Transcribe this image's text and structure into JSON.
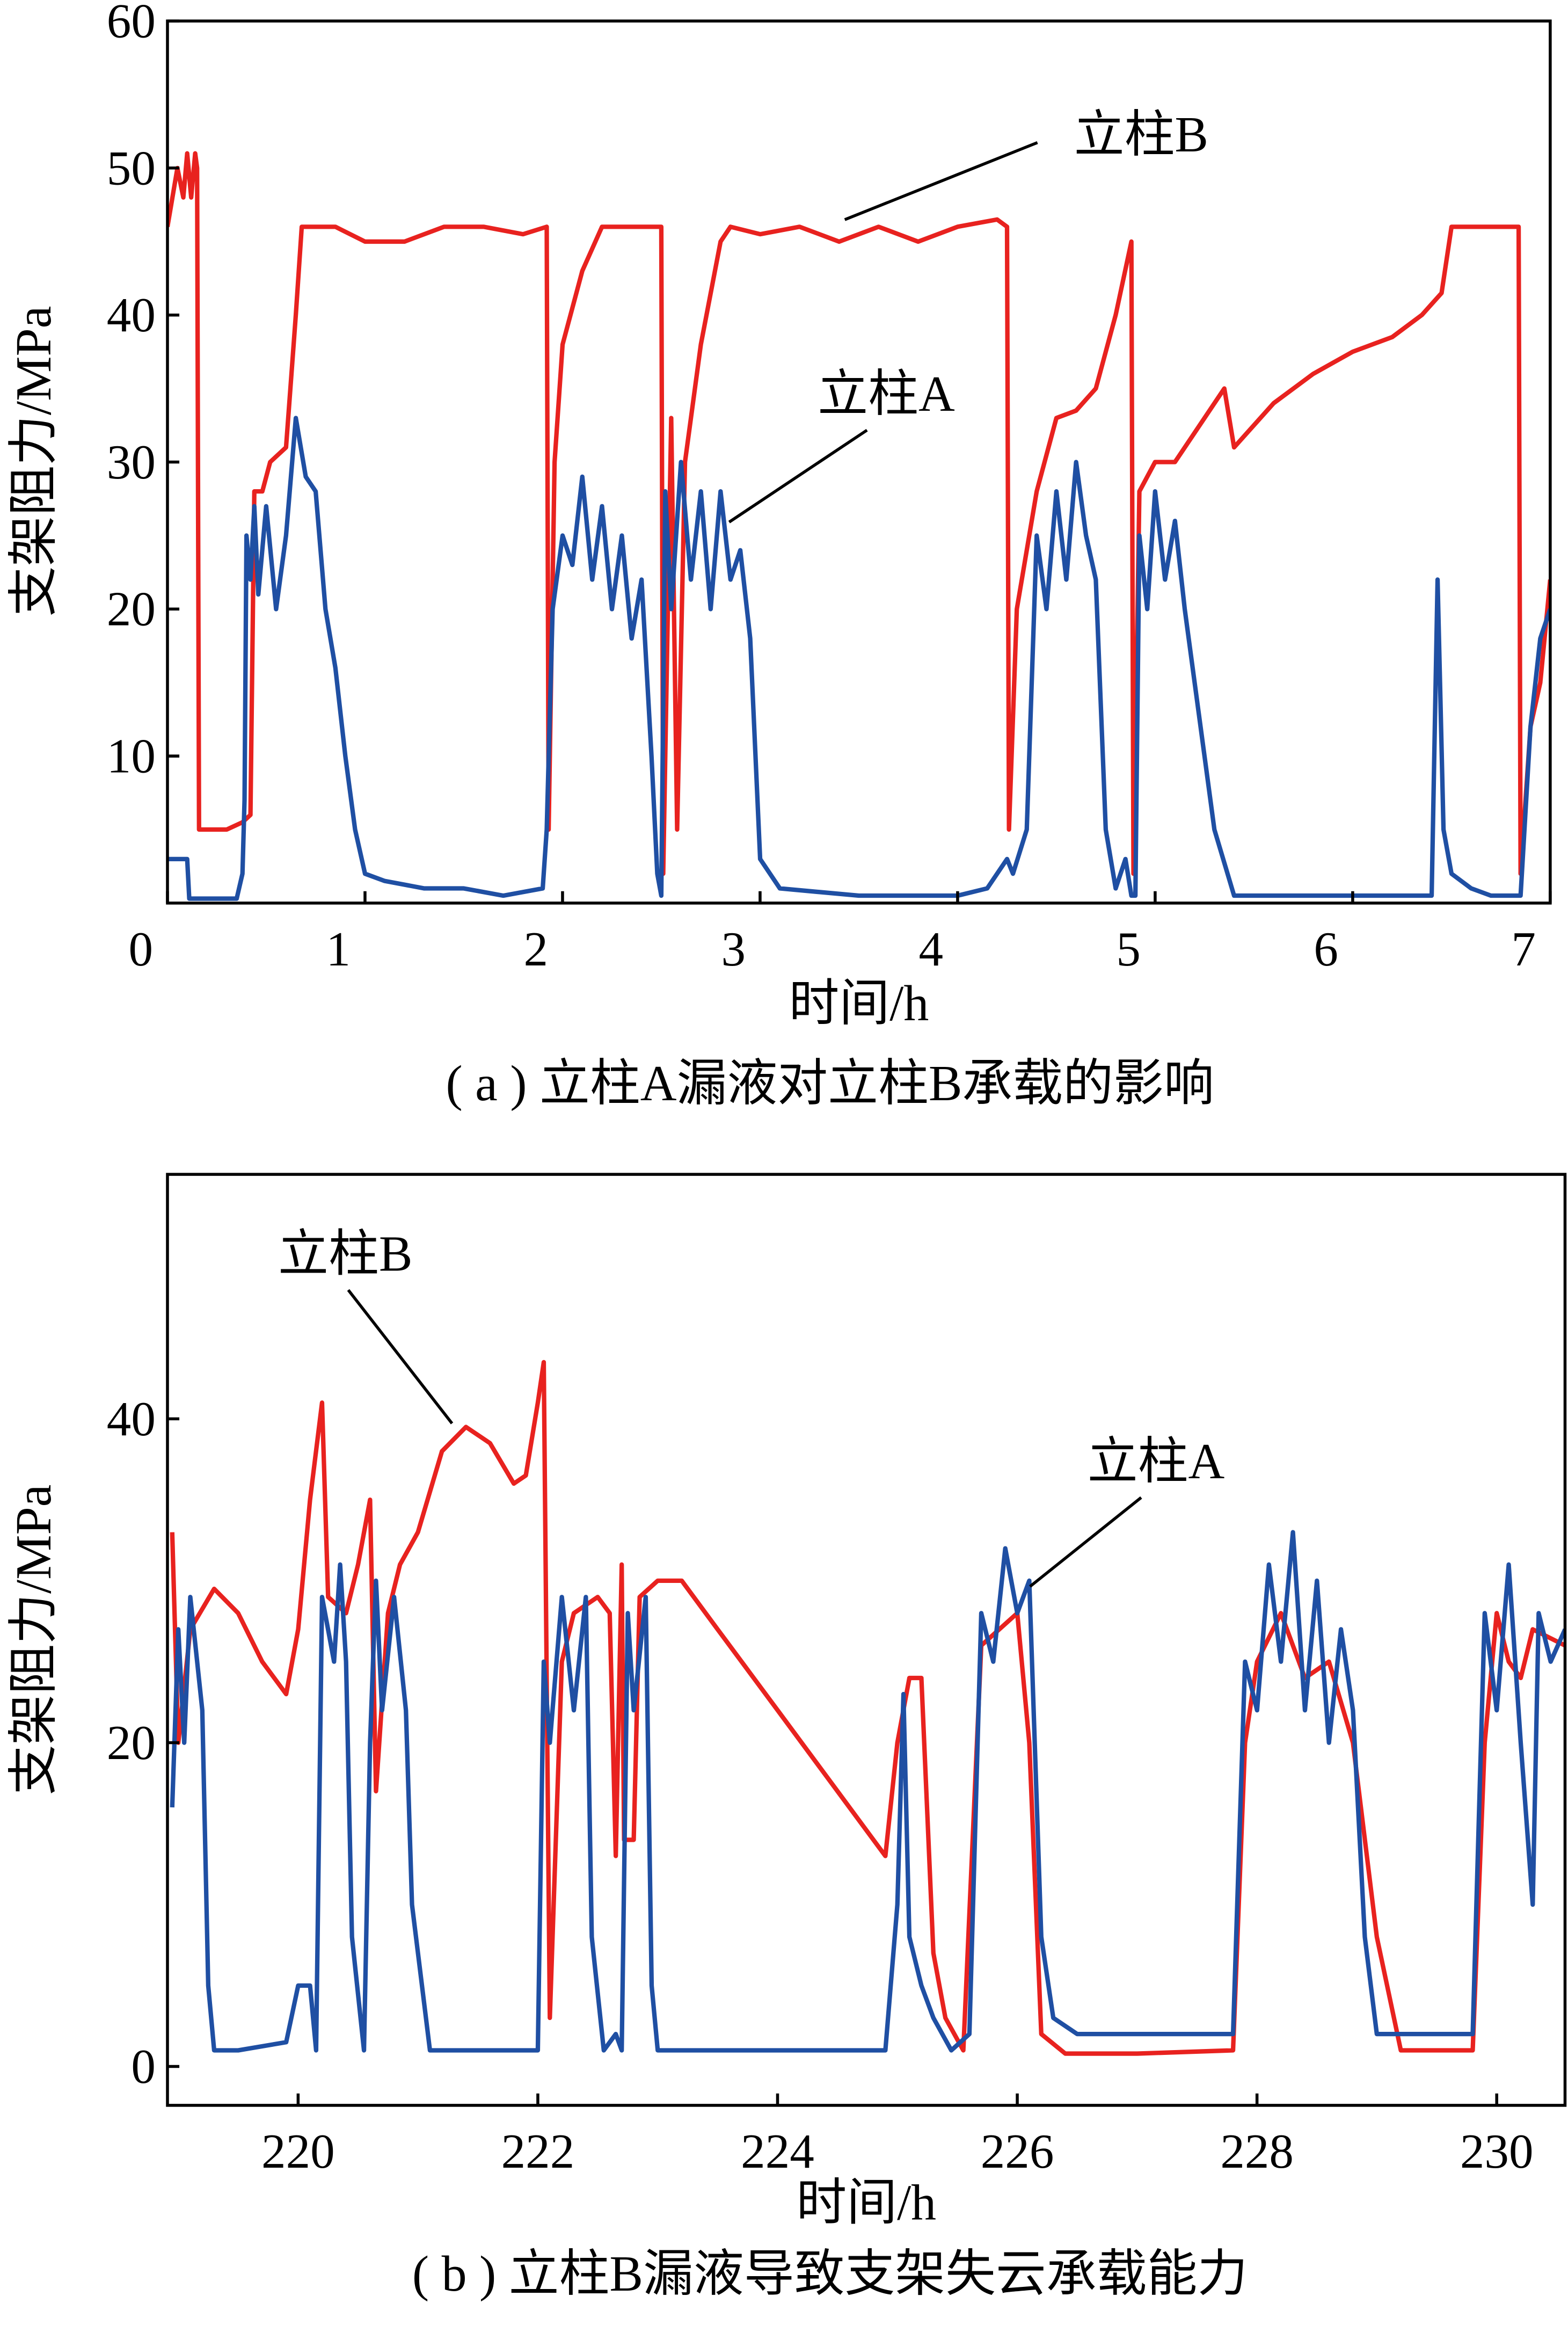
{
  "chart_data": [
    {
      "type": "line",
      "caption": "( a ) 立柱A漏液对立柱B承载的影响",
      "xlabel": "时间/h",
      "ylabel": "支架阻力/MPa",
      "xlim": [
        0,
        7
      ],
      "xticks": [
        0,
        1,
        2,
        3,
        4,
        5,
        6,
        7
      ],
      "ylim": [
        0,
        60
      ],
      "yticks": [
        10,
        20,
        30,
        40,
        50,
        60
      ],
      "series": [
        {
          "name": "立柱B",
          "color": "#e8221f",
          "x": [
            0,
            0.05,
            0.08,
            0.1,
            0.12,
            0.14,
            0.15,
            0.16,
            0.3,
            0.38,
            0.42,
            0.44,
            0.48,
            0.52,
            0.6,
            0.65,
            0.68,
            0.75,
            0.85,
            1.0,
            1.2,
            1.4,
            1.6,
            1.8,
            1.92,
            1.93,
            1.96,
            2.0,
            2.1,
            2.2,
            2.3,
            2.4,
            2.5,
            2.51,
            2.55,
            2.58,
            2.62,
            2.7,
            2.8,
            2.85,
            3.0,
            3.2,
            3.4,
            3.6,
            3.8,
            4.0,
            4.2,
            4.25,
            4.26,
            4.3,
            4.4,
            4.5,
            4.6,
            4.7,
            4.8,
            4.88,
            4.89,
            4.92,
            5.0,
            5.1,
            5.2,
            5.35,
            5.4,
            5.6,
            5.8,
            6.0,
            6.2,
            6.35,
            6.45,
            6.5,
            6.6,
            6.7,
            6.84,
            6.85,
            6.9,
            6.95,
            7.0
          ],
          "values": [
            46,
            50,
            48,
            51,
            48,
            51,
            50,
            5,
            5,
            5.5,
            6,
            28,
            28,
            30,
            31,
            40,
            46,
            46,
            46,
            45,
            45,
            46,
            46,
            45.5,
            46,
            5,
            30,
            38,
            43,
            46,
            46,
            46,
            46,
            2,
            33,
            5,
            30,
            38,
            45,
            46,
            45.5,
            46,
            45,
            46,
            45,
            46,
            46.5,
            46,
            5,
            20,
            28,
            33,
            33.5,
            35,
            40,
            45,
            2,
            28,
            30,
            30,
            32,
            35,
            31,
            34,
            36,
            37.5,
            38.5,
            40,
            41.5,
            46,
            46,
            46,
            46,
            2,
            12,
            15,
            22
          ]
        },
        {
          "name": "立柱A",
          "color": "#1f4fa3",
          "x": [
            0,
            0.1,
            0.11,
            0.35,
            0.38,
            0.39,
            0.4,
            0.42,
            0.44,
            0.46,
            0.5,
            0.55,
            0.6,
            0.65,
            0.7,
            0.75,
            0.8,
            0.85,
            0.9,
            0.95,
            1.0,
            1.1,
            1.3,
            1.5,
            1.7,
            1.9,
            1.92,
            1.95,
            2.0,
            2.05,
            2.1,
            2.15,
            2.2,
            2.25,
            2.3,
            2.35,
            2.4,
            2.45,
            2.48,
            2.5,
            2.52,
            2.55,
            2.6,
            2.65,
            2.7,
            2.75,
            2.8,
            2.85,
            2.9,
            2.95,
            3.0,
            3.1,
            3.5,
            4.0,
            4.15,
            4.25,
            4.28,
            4.35,
            4.4,
            4.45,
            4.5,
            4.55,
            4.6,
            4.65,
            4.7,
            4.75,
            4.8,
            4.85,
            4.88,
            4.9,
            4.92,
            4.96,
            5.0,
            5.05,
            5.1,
            5.15,
            5.3,
            5.4,
            5.8,
            6.2,
            6.4,
            6.43,
            6.46,
            6.5,
            6.6,
            6.7,
            6.85,
            6.9,
            6.95,
            7.0
          ],
          "values": [
            3,
            3,
            0.3,
            0.3,
            2,
            7,
            25,
            22,
            27,
            21,
            27,
            20,
            25,
            33,
            29,
            28,
            20,
            16,
            10,
            5,
            2,
            1.5,
            1,
            1,
            0.5,
            1,
            5,
            20,
            25,
            23,
            29,
            22,
            27,
            20,
            25,
            18,
            22,
            10,
            2,
            0.5,
            28,
            20,
            30,
            22,
            28,
            20,
            28,
            22,
            24,
            18,
            3,
            1,
            0.5,
            0.5,
            1,
            3,
            2,
            5,
            25,
            20,
            28,
            22,
            30,
            25,
            22,
            5,
            1,
            3,
            0.5,
            0.5,
            25,
            20,
            28,
            22,
            26,
            20,
            5,
            0.5,
            0.5,
            0.5,
            0.5,
            22,
            5,
            2,
            1,
            0.5,
            0.5,
            12,
            18,
            20
          ]
        }
      ]
    },
    {
      "type": "line",
      "caption": "( b ) 立柱B漏液导致支架失云承载能力",
      "xlabel": "时间/h",
      "ylabel": "支架阻力/MPa",
      "xlim": [
        218.91,
        230.57
      ],
      "xticks": [
        220,
        222,
        224,
        226,
        228,
        230
      ],
      "ylim": [
        -2.4,
        55.1
      ],
      "yticks": [
        0,
        20,
        40
      ],
      "series": [
        {
          "name": "立柱B",
          "color": "#e8221f",
          "x": [
            218.95,
            219.0,
            219.1,
            219.3,
            219.5,
            219.7,
            219.9,
            220.0,
            220.1,
            220.2,
            220.25,
            220.4,
            220.5,
            220.6,
            220.65,
            220.75,
            220.85,
            221.0,
            221.2,
            221.4,
            221.6,
            221.8,
            221.9,
            222.0,
            222.05,
            222.1,
            222.2,
            222.3,
            222.5,
            222.6,
            222.65,
            222.7,
            222.72,
            222.8,
            222.85,
            223.0,
            223.2,
            223.5,
            224.0,
            224.5,
            224.9,
            225.0,
            225.1,
            225.2,
            225.3,
            225.4,
            225.55,
            225.7,
            226.0,
            226.1,
            226.2,
            226.4,
            227.0,
            227.8,
            227.9,
            228.0,
            228.2,
            228.4,
            228.6,
            228.8,
            229.0,
            229.2,
            229.5,
            229.8,
            229.9,
            230.0,
            230.1,
            230.2,
            230.3,
            230.57
          ],
          "values": [
            33,
            20,
            27,
            29.5,
            28,
            25,
            23,
            27,
            35,
            41,
            29,
            28,
            31,
            35,
            17,
            28,
            31,
            33,
            38,
            39.5,
            38.5,
            36,
            36.5,
            41,
            43.5,
            3,
            25,
            28,
            29,
            28,
            13,
            31,
            14,
            14,
            29,
            30,
            30,
            27,
            22,
            17,
            13,
            20,
            24,
            24,
            7,
            3,
            1,
            26,
            28,
            20,
            2,
            0.8,
            0.8,
            1,
            20,
            25,
            28,
            24,
            25,
            20,
            8,
            1,
            1,
            1,
            20,
            28,
            25,
            24,
            27,
            26
          ]
        },
        {
          "name": "立柱A",
          "color": "#1f4fa3",
          "x": [
            218.95,
            219.0,
            219.05,
            219.1,
            219.2,
            219.25,
            219.3,
            219.5,
            219.9,
            220.0,
            220.1,
            220.15,
            220.2,
            220.3,
            220.35,
            220.4,
            220.45,
            220.55,
            220.6,
            220.65,
            220.7,
            220.8,
            220.9,
            220.95,
            221.1,
            221.5,
            222.0,
            222.05,
            222.1,
            222.2,
            222.3,
            222.4,
            222.45,
            222.55,
            222.65,
            222.7,
            222.75,
            222.8,
            222.9,
            222.95,
            223.0,
            223.5,
            224.0,
            224.5,
            224.9,
            225.0,
            225.05,
            225.1,
            225.2,
            225.3,
            225.45,
            225.6,
            225.7,
            225.8,
            225.9,
            226.0,
            226.1,
            226.2,
            226.3,
            226.5,
            227.0,
            227.8,
            227.9,
            228.0,
            228.1,
            228.2,
            228.3,
            228.4,
            228.5,
            228.6,
            228.7,
            228.8,
            228.9,
            229.0,
            229.5,
            229.8,
            229.9,
            230.0,
            230.1,
            230.2,
            230.3,
            230.35,
            230.45,
            230.57
          ],
          "values": [
            16,
            27,
            20,
            29,
            22,
            5,
            1,
            1,
            1.5,
            5,
            5,
            1,
            29,
            25,
            31,
            25,
            8,
            1,
            20,
            30,
            22,
            29,
            22,
            10,
            1,
            1,
            1,
            25,
            20,
            29,
            22,
            29,
            8,
            1,
            2,
            1,
            28,
            22,
            29,
            5,
            1,
            1,
            1,
            1,
            1,
            10,
            23,
            8,
            5,
            3,
            1,
            2,
            28,
            25,
            32,
            28,
            30,
            8,
            3,
            2,
            2,
            2,
            25,
            22,
            31,
            25,
            33,
            22,
            30,
            20,
            27,
            22,
            8,
            2,
            2,
            2,
            28,
            22,
            31,
            20,
            10,
            28,
            25,
            27
          ]
        }
      ]
    }
  ]
}
